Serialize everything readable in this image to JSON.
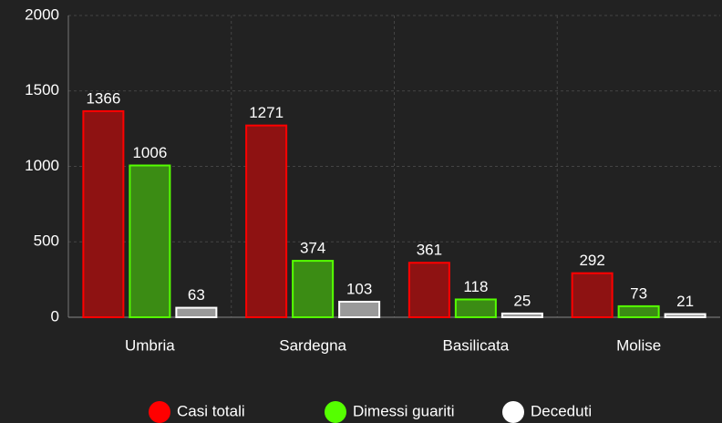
{
  "chart_data": {
    "type": "bar",
    "categories": [
      "Umbria",
      "Sardegna",
      "Basilicata",
      "Molise"
    ],
    "series": [
      {
        "name": "Casi totali",
        "color": "#ff0000",
        "fill": "#8e1212",
        "values": [
          1366,
          1271,
          361,
          292
        ]
      },
      {
        "name": "Dimessi guariti",
        "color": "#55ff00",
        "fill": "#3b8c14",
        "values": [
          1006,
          374,
          118,
          73
        ]
      },
      {
        "name": "Deceduti",
        "color": "#ffffff",
        "fill": "#9a9a9a",
        "values": [
          63,
          103,
          25,
          21
        ]
      }
    ],
    "ylim": [
      0,
      2000
    ],
    "yticks": [
      0,
      500,
      1000,
      1500,
      2000
    ],
    "grid": true,
    "legend": "bottom"
  }
}
